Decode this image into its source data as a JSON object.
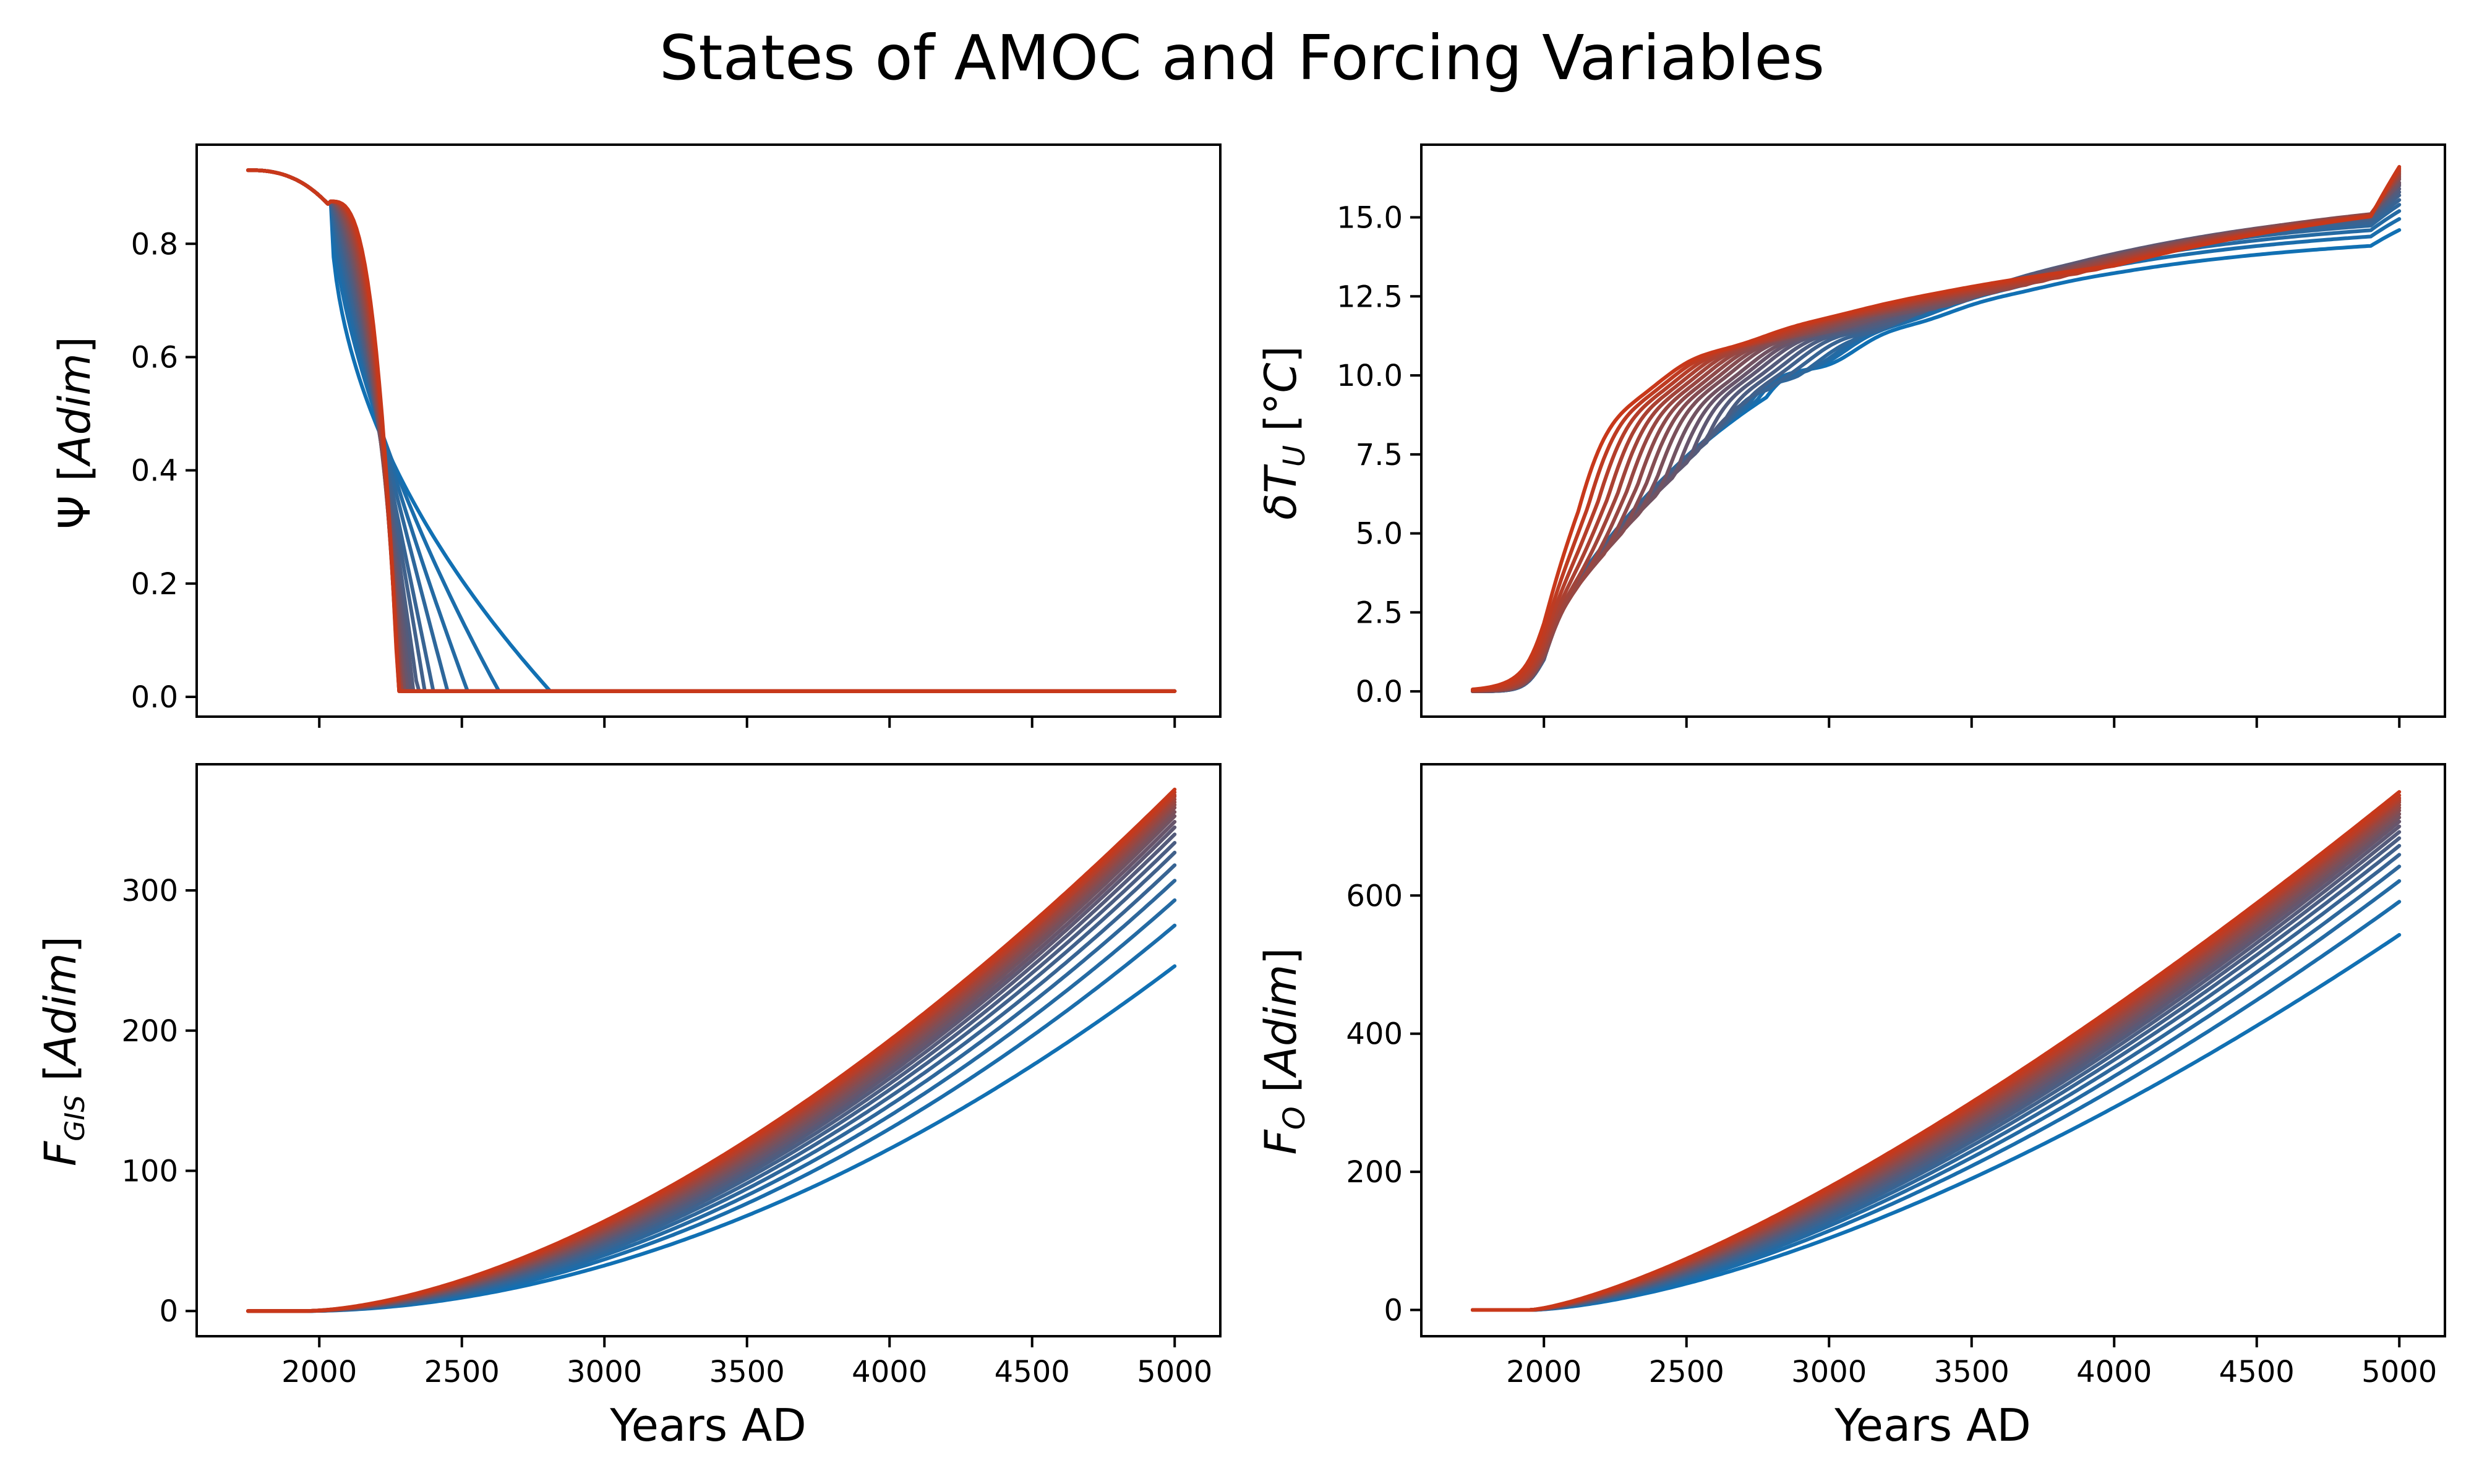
{
  "title": "States of AMOC and Forcing Variables",
  "colors": {
    "start": "#1170b3",
    "end": "#c8381a"
  },
  "chart_data": [
    {
      "type": "line",
      "id": "psi",
      "ylabel": "Ψ [Adim]",
      "xlabel": "",
      "xlim": [
        1570,
        5160
      ],
      "ylim": [
        -0.035,
        0.975
      ],
      "xticks": [
        2000,
        2500,
        3000,
        3500,
        4000,
        4500,
        5000
      ],
      "xtick_labels_shown": false,
      "yticks": [
        "0.0",
        "0.2",
        "0.4",
        "0.6",
        "0.8"
      ],
      "grid": false,
      "series_count": 20,
      "start_value": 0.93,
      "collapse_years": [
        2810,
        2630,
        2520,
        2450,
        2400,
        2370,
        2345,
        2330,
        2318,
        2308,
        2300,
        2295,
        2290,
        2287,
        2284,
        2282,
        2280,
        2279,
        2278,
        2277
      ],
      "end_value": 0.01,
      "x_range": [
        1750,
        5000
      ]
    },
    {
      "type": "line",
      "id": "dTU",
      "ylabel": "δT_U [°C]",
      "xlabel": "",
      "xlim": [
        1570,
        5160
      ],
      "ylim": [
        -0.8,
        17.3
      ],
      "xticks": [
        2000,
        2500,
        3000,
        3500,
        4000,
        4500,
        5000
      ],
      "xtick_labels_shown": false,
      "yticks": [
        "0.0",
        "2.5",
        "5.0",
        "7.5",
        "10.0",
        "12.5",
        "15.0"
      ],
      "grid": false,
      "series_count": 20,
      "final_values": [
        14.6,
        14.95,
        15.2,
        15.4,
        15.55,
        15.7,
        15.8,
        15.9,
        16.0,
        16.05,
        16.1,
        16.2,
        16.25,
        16.3,
        16.35,
        16.4,
        16.45,
        16.5,
        16.55,
        16.6
      ],
      "x_range": [
        1750,
        5000
      ]
    },
    {
      "type": "line",
      "id": "fgis",
      "ylabel": "F_GIS [Adim]",
      "xlabel": "Years AD",
      "xlim": [
        1570,
        5160
      ],
      "ylim": [
        -18,
        390
      ],
      "xticks": [
        2000,
        2500,
        3000,
        3500,
        4000,
        4500,
        5000
      ],
      "xtick_labels_shown": true,
      "yticks": [
        "0",
        "100",
        "200",
        "300"
      ],
      "grid": false,
      "series_count": 20,
      "final_values": [
        246,
        275,
        293,
        307,
        318,
        327,
        334,
        340,
        345,
        349,
        353,
        356,
        359,
        361,
        363,
        365,
        367,
        368,
        370,
        372
      ],
      "x_range": [
        1750,
        5000
      ]
    },
    {
      "type": "line",
      "id": "fo",
      "ylabel": "F_O [Adim]",
      "xlabel": "Years AD",
      "xlim": [
        1570,
        5160
      ],
      "ylim": [
        -38,
        790
      ],
      "xticks": [
        2000,
        2500,
        3000,
        3500,
        4000,
        4500,
        5000
      ],
      "xtick_labels_shown": true,
      "yticks": [
        "0",
        "200",
        "400",
        "600"
      ],
      "grid": false,
      "series_count": 20,
      "final_values": [
        543,
        591,
        621,
        642,
        659,
        672,
        683,
        692,
        700,
        707,
        713,
        718,
        723,
        727,
        731,
        735,
        738,
        741,
        745,
        750
      ],
      "x_range": [
        1750,
        5000
      ]
    }
  ]
}
